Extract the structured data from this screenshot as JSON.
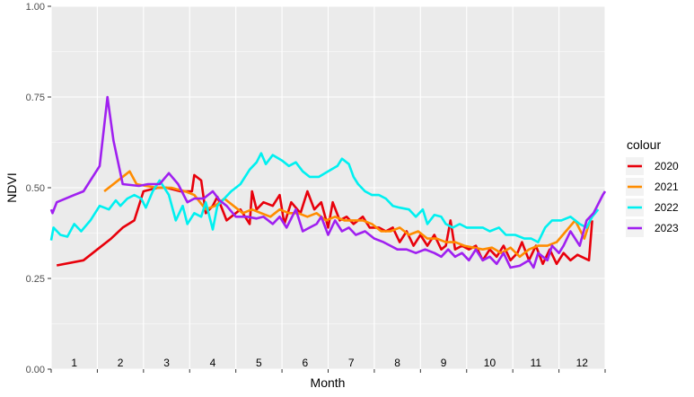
{
  "chart_data": {
    "type": "line",
    "xlabel": "Month",
    "ylabel": "NDVI",
    "ylim": [
      0,
      1
    ],
    "yticks": [
      {
        "value": 0,
        "label": "0.00"
      },
      {
        "value": 0.25,
        "label": "0.25"
      },
      {
        "value": 0.5,
        "label": "0.50"
      },
      {
        "value": 0.75,
        "label": "0.75"
      },
      {
        "value": 1,
        "label": "1.00"
      }
    ],
    "xlim": [
      0.5,
      12.5
    ],
    "month_labels": [
      "1",
      "2",
      "3",
      "4",
      "5",
      "6",
      "7",
      "8",
      "9",
      "10",
      "11",
      "12"
    ],
    "grid": true,
    "legend": {
      "title": "colour",
      "position": "right"
    },
    "series": [
      {
        "name": "2020",
        "color": "#e8000b",
        "points": [
          [
            0.62,
            0.286
          ],
          [
            1.2,
            0.3
          ],
          [
            1.5,
            0.33
          ],
          [
            1.8,
            0.36
          ],
          [
            2.05,
            0.39
          ],
          [
            2.3,
            0.41
          ],
          [
            2.5,
            0.49
          ],
          [
            2.8,
            0.5
          ],
          [
            3.0,
            0.5
          ],
          [
            3.3,
            0.49
          ],
          [
            3.55,
            0.49
          ],
          [
            3.6,
            0.535
          ],
          [
            3.75,
            0.52
          ],
          [
            3.85,
            0.43
          ],
          [
            4.0,
            0.45
          ],
          [
            4.1,
            0.475
          ],
          [
            4.3,
            0.41
          ],
          [
            4.6,
            0.44
          ],
          [
            4.8,
            0.4
          ],
          [
            4.85,
            0.49
          ],
          [
            4.95,
            0.44
          ],
          [
            5.1,
            0.46
          ],
          [
            5.3,
            0.45
          ],
          [
            5.45,
            0.48
          ],
          [
            5.55,
            0.4
          ],
          [
            5.7,
            0.46
          ],
          [
            5.9,
            0.43
          ],
          [
            6.05,
            0.49
          ],
          [
            6.2,
            0.44
          ],
          [
            6.35,
            0.46
          ],
          [
            6.5,
            0.39
          ],
          [
            6.6,
            0.46
          ],
          [
            6.75,
            0.41
          ],
          [
            6.9,
            0.42
          ],
          [
            7.05,
            0.4
          ],
          [
            7.25,
            0.42
          ],
          [
            7.4,
            0.39
          ],
          [
            7.6,
            0.39
          ],
          [
            7.75,
            0.38
          ],
          [
            7.9,
            0.39
          ],
          [
            8.05,
            0.35
          ],
          [
            8.2,
            0.38
          ],
          [
            8.35,
            0.34
          ],
          [
            8.5,
            0.37
          ],
          [
            8.65,
            0.34
          ],
          [
            8.8,
            0.37
          ],
          [
            8.95,
            0.33
          ],
          [
            9.05,
            0.34
          ],
          [
            9.15,
            0.41
          ],
          [
            9.25,
            0.33
          ],
          [
            9.4,
            0.34
          ],
          [
            9.55,
            0.33
          ],
          [
            9.7,
            0.34
          ],
          [
            9.85,
            0.3
          ],
          [
            10.0,
            0.33
          ],
          [
            10.15,
            0.31
          ],
          [
            10.3,
            0.34
          ],
          [
            10.45,
            0.3
          ],
          [
            10.6,
            0.32
          ],
          [
            10.7,
            0.35
          ],
          [
            10.85,
            0.3
          ],
          [
            11.0,
            0.34
          ],
          [
            11.15,
            0.29
          ],
          [
            11.3,
            0.33
          ],
          [
            11.45,
            0.29
          ],
          [
            11.6,
            0.32
          ],
          [
            11.75,
            0.3
          ],
          [
            11.9,
            0.315
          ],
          [
            12.15,
            0.3
          ],
          [
            12.22,
            0.41
          ]
        ]
      },
      {
        "name": "2021",
        "color": "#ff8c00",
        "points": [
          [
            1.65,
            0.49
          ],
          [
            2.2,
            0.545
          ],
          [
            2.35,
            0.51
          ],
          [
            2.55,
            0.505
          ],
          [
            2.8,
            0.5
          ],
          [
            3.1,
            0.5
          ],
          [
            3.4,
            0.49
          ],
          [
            3.6,
            0.48
          ],
          [
            3.85,
            0.44
          ],
          [
            4.05,
            0.45
          ],
          [
            4.25,
            0.47
          ],
          [
            4.45,
            0.45
          ],
          [
            4.65,
            0.43
          ],
          [
            4.85,
            0.44
          ],
          [
            5.05,
            0.43
          ],
          [
            5.25,
            0.42
          ],
          [
            5.45,
            0.44
          ],
          [
            5.65,
            0.43
          ],
          [
            5.85,
            0.43
          ],
          [
            6.05,
            0.42
          ],
          [
            6.25,
            0.43
          ],
          [
            6.45,
            0.41
          ],
          [
            6.65,
            0.42
          ],
          [
            6.85,
            0.41
          ],
          [
            7.05,
            0.41
          ],
          [
            7.25,
            0.41
          ],
          [
            7.45,
            0.4
          ],
          [
            7.65,
            0.38
          ],
          [
            7.85,
            0.38
          ],
          [
            8.05,
            0.39
          ],
          [
            8.25,
            0.37
          ],
          [
            8.45,
            0.38
          ],
          [
            8.65,
            0.36
          ],
          [
            8.85,
            0.36
          ],
          [
            9.05,
            0.35
          ],
          [
            9.25,
            0.35
          ],
          [
            9.45,
            0.34
          ],
          [
            9.65,
            0.335
          ],
          [
            9.85,
            0.33
          ],
          [
            10.05,
            0.335
          ],
          [
            10.25,
            0.32
          ],
          [
            10.45,
            0.335
          ],
          [
            10.65,
            0.31
          ],
          [
            10.85,
            0.33
          ],
          [
            11.05,
            0.34
          ],
          [
            11.25,
            0.34
          ],
          [
            11.45,
            0.35
          ],
          [
            11.65,
            0.38
          ],
          [
            11.85,
            0.41
          ],
          [
            12.05,
            0.36
          ],
          [
            12.2,
            0.42
          ]
        ]
      },
      {
        "name": "2022",
        "color": "#00f0f0",
        "points": [
          [
            0.5,
            0.355
          ],
          [
            0.55,
            0.39
          ],
          [
            0.7,
            0.37
          ],
          [
            0.85,
            0.365
          ],
          [
            1.0,
            0.4
          ],
          [
            1.15,
            0.38
          ],
          [
            1.35,
            0.41
          ],
          [
            1.55,
            0.45
          ],
          [
            1.75,
            0.44
          ],
          [
            1.9,
            0.465
          ],
          [
            2.0,
            0.45
          ],
          [
            2.15,
            0.47
          ],
          [
            2.3,
            0.48
          ],
          [
            2.45,
            0.47
          ],
          [
            2.55,
            0.445
          ],
          [
            2.7,
            0.49
          ],
          [
            2.85,
            0.52
          ],
          [
            3.05,
            0.48
          ],
          [
            3.2,
            0.41
          ],
          [
            3.35,
            0.45
          ],
          [
            3.45,
            0.4
          ],
          [
            3.6,
            0.43
          ],
          [
            3.75,
            0.42
          ],
          [
            3.85,
            0.46
          ],
          [
            4.0,
            0.385
          ],
          [
            4.1,
            0.45
          ],
          [
            4.25,
            0.47
          ],
          [
            4.4,
            0.49
          ],
          [
            4.6,
            0.51
          ],
          [
            4.8,
            0.55
          ],
          [
            4.95,
            0.57
          ],
          [
            5.05,
            0.595
          ],
          [
            5.15,
            0.565
          ],
          [
            5.3,
            0.59
          ],
          [
            5.5,
            0.575
          ],
          [
            5.65,
            0.56
          ],
          [
            5.8,
            0.57
          ],
          [
            5.95,
            0.545
          ],
          [
            6.1,
            0.53
          ],
          [
            6.3,
            0.53
          ],
          [
            6.5,
            0.545
          ],
          [
            6.7,
            0.56
          ],
          [
            6.8,
            0.58
          ],
          [
            6.95,
            0.565
          ],
          [
            7.05,
            0.53
          ],
          [
            7.15,
            0.51
          ],
          [
            7.3,
            0.49
          ],
          [
            7.45,
            0.48
          ],
          [
            7.6,
            0.48
          ],
          [
            7.75,
            0.47
          ],
          [
            7.9,
            0.45
          ],
          [
            8.05,
            0.445
          ],
          [
            8.25,
            0.44
          ],
          [
            8.4,
            0.42
          ],
          [
            8.55,
            0.44
          ],
          [
            8.65,
            0.4
          ],
          [
            8.8,
            0.425
          ],
          [
            8.95,
            0.42
          ],
          [
            9.05,
            0.4
          ],
          [
            9.2,
            0.39
          ],
          [
            9.35,
            0.4
          ],
          [
            9.5,
            0.39
          ],
          [
            9.65,
            0.39
          ],
          [
            9.85,
            0.39
          ],
          [
            10.0,
            0.38
          ],
          [
            10.2,
            0.39
          ],
          [
            10.35,
            0.37
          ],
          [
            10.55,
            0.37
          ],
          [
            10.75,
            0.36
          ],
          [
            10.9,
            0.36
          ],
          [
            11.05,
            0.35
          ],
          [
            11.2,
            0.39
          ],
          [
            11.35,
            0.41
          ],
          [
            11.55,
            0.41
          ],
          [
            11.75,
            0.42
          ],
          [
            11.95,
            0.4
          ],
          [
            12.1,
            0.39
          ],
          [
            12.22,
            0.42
          ],
          [
            12.35,
            0.44
          ]
        ]
      },
      {
        "name": "2023",
        "color": "#a020f0",
        "points": [
          [
            0.5,
            0.44
          ],
          [
            0.53,
            0.43
          ],
          [
            0.62,
            0.46
          ],
          [
            1.0,
            0.48
          ],
          [
            1.2,
            0.49
          ],
          [
            1.55,
            0.56
          ],
          [
            1.72,
            0.75
          ],
          [
            1.85,
            0.63
          ],
          [
            2.05,
            0.51
          ],
          [
            2.4,
            0.505
          ],
          [
            2.6,
            0.51
          ],
          [
            2.85,
            0.51
          ],
          [
            3.05,
            0.54
          ],
          [
            3.25,
            0.51
          ],
          [
            3.45,
            0.46
          ],
          [
            3.6,
            0.47
          ],
          [
            3.8,
            0.47
          ],
          [
            4.0,
            0.49
          ],
          [
            4.15,
            0.465
          ],
          [
            4.3,
            0.45
          ],
          [
            4.5,
            0.42
          ],
          [
            4.75,
            0.42
          ],
          [
            4.95,
            0.415
          ],
          [
            5.1,
            0.42
          ],
          [
            5.3,
            0.4
          ],
          [
            5.45,
            0.42
          ],
          [
            5.6,
            0.39
          ],
          [
            5.8,
            0.44
          ],
          [
            5.95,
            0.38
          ],
          [
            6.1,
            0.39
          ],
          [
            6.25,
            0.4
          ],
          [
            6.35,
            0.42
          ],
          [
            6.5,
            0.37
          ],
          [
            6.65,
            0.41
          ],
          [
            6.8,
            0.38
          ],
          [
            6.95,
            0.39
          ],
          [
            7.1,
            0.37
          ],
          [
            7.3,
            0.38
          ],
          [
            7.5,
            0.36
          ],
          [
            7.7,
            0.35
          ],
          [
            7.85,
            0.34
          ],
          [
            8.0,
            0.33
          ],
          [
            8.2,
            0.33
          ],
          [
            8.4,
            0.32
          ],
          [
            8.6,
            0.33
          ],
          [
            8.8,
            0.32
          ],
          [
            8.95,
            0.31
          ],
          [
            9.1,
            0.33
          ],
          [
            9.25,
            0.31
          ],
          [
            9.4,
            0.32
          ],
          [
            9.55,
            0.3
          ],
          [
            9.7,
            0.33
          ],
          [
            9.85,
            0.3
          ],
          [
            10.0,
            0.31
          ],
          [
            10.15,
            0.29
          ],
          [
            10.3,
            0.32
          ],
          [
            10.45,
            0.28
          ],
          [
            10.65,
            0.285
          ],
          [
            10.85,
            0.3
          ],
          [
            10.95,
            0.28
          ],
          [
            11.05,
            0.32
          ],
          [
            11.25,
            0.3
          ],
          [
            11.35,
            0.34
          ],
          [
            11.5,
            0.32
          ],
          [
            11.6,
            0.34
          ],
          [
            11.75,
            0.38
          ],
          [
            11.95,
            0.34
          ],
          [
            12.1,
            0.41
          ],
          [
            12.25,
            0.43
          ],
          [
            12.45,
            0.48
          ],
          [
            12.5,
            0.49
          ]
        ]
      }
    ]
  }
}
